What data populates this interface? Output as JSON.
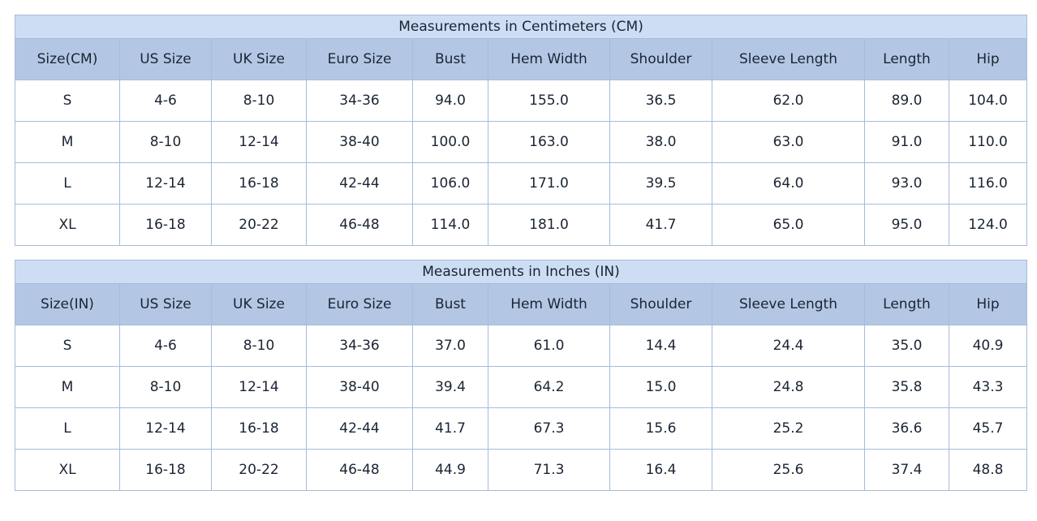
{
  "colors": {
    "title_bg": "#cdddf3",
    "header_bg": "#b3c7e5",
    "row_bg": "#ffffff",
    "border": "#a6bbda",
    "border_outer": "#8ca3c2",
    "text": "#1a2433",
    "page_bg": "#ffffff"
  },
  "chart_data": [
    {
      "type": "table",
      "title": "Measurements in Centimeters (CM)",
      "columns": [
        "Size(CM)",
        "US Size",
        "UK Size",
        "Euro Size",
        "Bust",
        "Hem Width",
        "Shoulder",
        "Sleeve Length",
        "Length",
        "Hip"
      ],
      "rows": [
        [
          "S",
          "4-6",
          "8-10",
          "34-36",
          "94.0",
          "155.0",
          "36.5",
          "62.0",
          "89.0",
          "104.0"
        ],
        [
          "M",
          "8-10",
          "12-14",
          "38-40",
          "100.0",
          "163.0",
          "38.0",
          "63.0",
          "91.0",
          "110.0"
        ],
        [
          "L",
          "12-14",
          "16-18",
          "42-44",
          "106.0",
          "171.0",
          "39.5",
          "64.0",
          "93.0",
          "116.0"
        ],
        [
          "XL",
          "16-18",
          "20-22",
          "46-48",
          "114.0",
          "181.0",
          "41.7",
          "65.0",
          "95.0",
          "124.0"
        ]
      ]
    },
    {
      "type": "table",
      "title": "Measurements in Inches (IN)",
      "columns": [
        "Size(IN)",
        "US Size",
        "UK Size",
        "Euro Size",
        "Bust",
        "Hem Width",
        "Shoulder",
        "Sleeve Length",
        "Length",
        "Hip"
      ],
      "rows": [
        [
          "S",
          "4-6",
          "8-10",
          "34-36",
          "37.0",
          "61.0",
          "14.4",
          "24.4",
          "35.0",
          "40.9"
        ],
        [
          "M",
          "8-10",
          "12-14",
          "38-40",
          "39.4",
          "64.2",
          "15.0",
          "24.8",
          "35.8",
          "43.3"
        ],
        [
          "L",
          "12-14",
          "16-18",
          "42-44",
          "41.7",
          "67.3",
          "15.6",
          "25.2",
          "36.6",
          "45.7"
        ],
        [
          "XL",
          "16-18",
          "20-22",
          "46-48",
          "44.9",
          "71.3",
          "16.4",
          "25.6",
          "37.4",
          "48.8"
        ]
      ]
    }
  ]
}
